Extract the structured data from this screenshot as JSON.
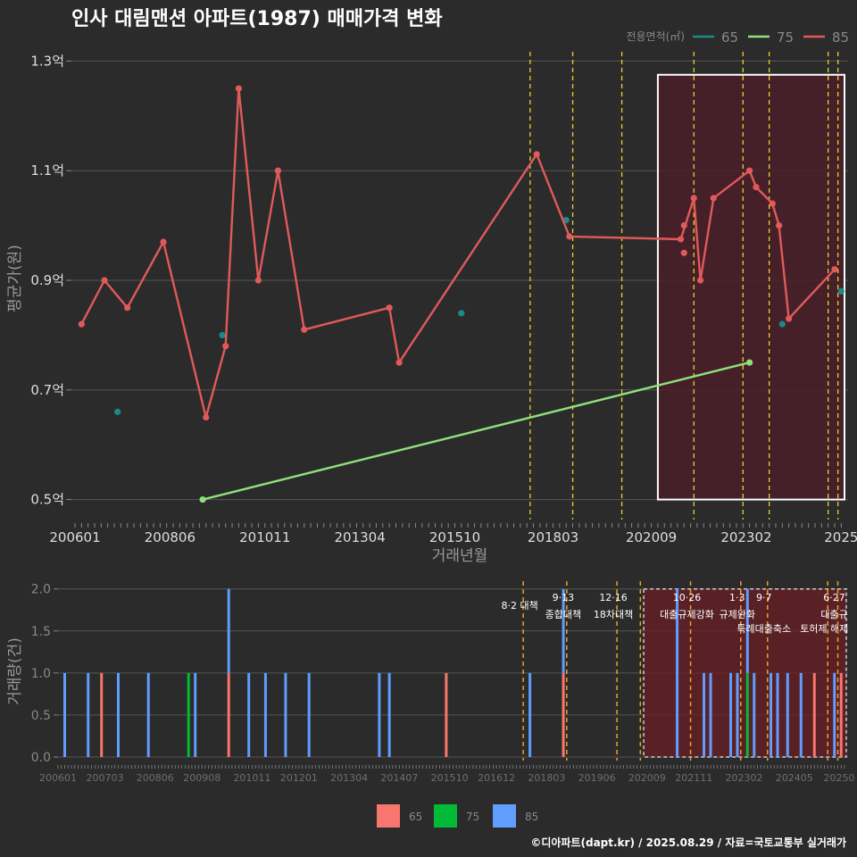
{
  "title": "인사 대림맨션 아파트(1987) 매매가격 변화",
  "footer": "©디아파트(dapt.kr) / 2025.08.29 / 자료=국토교통부 실거래가",
  "colors": {
    "background": "#2b2b2b",
    "grid": "#555555",
    "area65": "#1b8a8a",
    "area75": "#90e07a",
    "area85": "#e05a5a",
    "bar65": "#f8766d",
    "bar75": "#00ba38",
    "bar85": "#619cff",
    "policy_line": "#e6d22a",
    "highlight_fill": "#4a1f28",
    "text": "#dddddd",
    "muted": "#888888"
  },
  "chart_data": [
    {
      "type": "line",
      "title": "인사 대림맨션 아파트(1987) 매매가격 변화",
      "xlabel": "거래년월",
      "ylabel": "평균가(원)",
      "legend_title": "전용면적(㎡)",
      "legend_position": "top-right",
      "x_ticks": [
        "200601",
        "200806",
        "201011",
        "201304",
        "201510",
        "201803",
        "202009",
        "202302",
        "2025"
      ],
      "y_ticks": [
        "0.5억",
        "0.7억",
        "0.9억",
        "1.1억",
        "1.3억"
      ],
      "y_tick_values": [
        0.5,
        0.7,
        0.9,
        1.1,
        1.3
      ],
      "ylim": [
        0.47,
        1.33
      ],
      "xlim": [
        "2006-01",
        "2025-08"
      ],
      "series": [
        {
          "name": "65",
          "color": "#1b8a8a",
          "mode": "points",
          "points": [
            {
              "x": "2007-02",
              "y": 0.66
            },
            {
              "x": "2009-10",
              "y": 0.8
            },
            {
              "x": "2015-11",
              "y": 0.84
            },
            {
              "x": "2018-07",
              "y": 1.01
            },
            {
              "x": "2024-01",
              "y": 0.82
            },
            {
              "x": "2025-07",
              "y": 0.88
            }
          ]
        },
        {
          "name": "75",
          "color": "#90e07a",
          "mode": "line",
          "points": [
            {
              "x": "2009-04",
              "y": 0.5
            },
            {
              "x": "2023-03",
              "y": 0.75
            }
          ]
        },
        {
          "name": "85",
          "color": "#e05a5a",
          "mode": "line",
          "points": [
            {
              "x": "2006-03",
              "y": 0.82
            },
            {
              "x": "2006-10",
              "y": 0.9
            },
            {
              "x": "2007-05",
              "y": 0.85
            },
            {
              "x": "2008-04",
              "y": 0.97
            },
            {
              "x": "2009-05",
              "y": 0.65
            },
            {
              "x": "2009-11",
              "y": 0.78
            },
            {
              "x": "2010-03",
              "y": 1.25
            },
            {
              "x": "2010-09",
              "y": 0.9
            },
            {
              "x": "2011-03",
              "y": 1.1
            },
            {
              "x": "2011-11",
              "y": 0.81
            },
            {
              "x": "2014-01",
              "y": 0.85
            },
            {
              "x": "2014-04",
              "y": 0.75
            },
            {
              "x": "2017-10",
              "y": 1.13
            },
            {
              "x": "2018-08",
              "y": 0.98
            },
            {
              "x": "2021-06",
              "y": 0.975
            },
            {
              "x": "2021-10",
              "y": 1.05
            },
            {
              "x": "2021-12",
              "y": 0.9
            },
            {
              "x": "2022-04",
              "y": 1.05
            },
            {
              "x": "2023-03",
              "y": 1.1
            },
            {
              "x": "2023-05",
              "y": 1.07
            },
            {
              "x": "2023-10",
              "y": 1.04
            },
            {
              "x": "2023-12",
              "y": 1.0
            },
            {
              "x": "2024-03",
              "y": 0.83
            },
            {
              "x": "2025-05",
              "y": 0.92
            }
          ],
          "extra_points": [
            {
              "x": "2021-07",
              "y": 1.0
            },
            {
              "x": "2021-07",
              "y": 0.95
            }
          ]
        }
      ],
      "policy_lines": [
        "2017-08",
        "2018-09",
        "2019-12",
        "2021-10",
        "2023-01",
        "2023-09",
        "2025-03",
        "2025-06"
      ],
      "highlight_range": {
        "x": [
          "2020-11",
          "2025-08"
        ],
        "y": [
          0.5,
          1.275
        ]
      }
    },
    {
      "type": "bar",
      "xlabel": "",
      "ylabel": "거래량(건)",
      "y_ticks": [
        "0.0",
        "0.5",
        "1.0",
        "1.5",
        "2.0"
      ],
      "y_tick_values": [
        0,
        0.5,
        1.0,
        1.5,
        2.0
      ],
      "ylim": [
        0,
        2.0
      ],
      "x_ticks": [
        "200601",
        "200703",
        "200806",
        "200908",
        "201011",
        "201201",
        "201304",
        "201407",
        "201510",
        "201612",
        "201803",
        "201906",
        "202009",
        "202111",
        "202302",
        "202405",
        "20250"
      ],
      "legend_position": "bottom",
      "legend": [
        {
          "name": "65",
          "color": "#f8766d"
        },
        {
          "name": "75",
          "color": "#00ba38"
        },
        {
          "name": "85",
          "color": "#619cff"
        }
      ],
      "bars": [
        {
          "x": "2006-03",
          "v85": 1
        },
        {
          "x": "2006-10",
          "v85": 1
        },
        {
          "x": "2007-02",
          "v65": 1
        },
        {
          "x": "2007-07",
          "v85": 1
        },
        {
          "x": "2008-04",
          "v85": 1
        },
        {
          "x": "2009-04",
          "v75": 1
        },
        {
          "x": "2009-06",
          "v85": 1
        },
        {
          "x": "2010-04",
          "v65": 1,
          "v85": 1
        },
        {
          "x": "2010-10",
          "v85": 1
        },
        {
          "x": "2011-03",
          "v85": 1
        },
        {
          "x": "2011-09",
          "v85": 1
        },
        {
          "x": "2012-04",
          "v85": 1
        },
        {
          "x": "2014-01",
          "v85": 1
        },
        {
          "x": "2014-04",
          "v85": 1
        },
        {
          "x": "2015-09",
          "v65": 1
        },
        {
          "x": "2017-10",
          "v85": 1
        },
        {
          "x": "2018-08",
          "v65": 1,
          "v85": 1
        },
        {
          "x": "2021-06",
          "v85": 2
        },
        {
          "x": "2022-02",
          "v85": 1
        },
        {
          "x": "2022-04",
          "v85": 1
        },
        {
          "x": "2022-10",
          "v85": 1
        },
        {
          "x": "2022-12",
          "v85": 1
        },
        {
          "x": "2023-03",
          "v75": 1,
          "v85": 1
        },
        {
          "x": "2023-05",
          "v85": 1
        },
        {
          "x": "2023-10",
          "v85": 1
        },
        {
          "x": "2023-12",
          "v85": 1
        },
        {
          "x": "2024-03",
          "v85": 1
        },
        {
          "x": "2024-07",
          "v85": 1
        },
        {
          "x": "2024-11",
          "v65": 1
        },
        {
          "x": "2025-05",
          "v85": 1
        },
        {
          "x": "2025-07",
          "v65": 1
        }
      ],
      "policy_lines": [
        {
          "x": "2017-08",
          "date": "",
          "label": "8·2 대책"
        },
        {
          "x": "2018-09",
          "date": "9·13",
          "label": "종합대책"
        },
        {
          "x": "2019-12",
          "date": "12·16",
          "label": "18차대책"
        },
        {
          "x": "2020-07",
          "date": "",
          "label": ""
        },
        {
          "x": "2021-10",
          "date": "10·26",
          "label": "대출규제강화"
        },
        {
          "x": "2023-01",
          "date": "1·3",
          "label": "규제완화"
        },
        {
          "x": "2023-09",
          "date": "9·7",
          "label": "특례대출축소"
        },
        {
          "x": "2025-03",
          "date": "",
          "label": "토허제 해제"
        },
        {
          "x": "2025-06",
          "date": "6·27",
          "label": "대출규"
        }
      ],
      "highlight_range": {
        "x": [
          "2020-08",
          "2025-08"
        ]
      }
    }
  ]
}
